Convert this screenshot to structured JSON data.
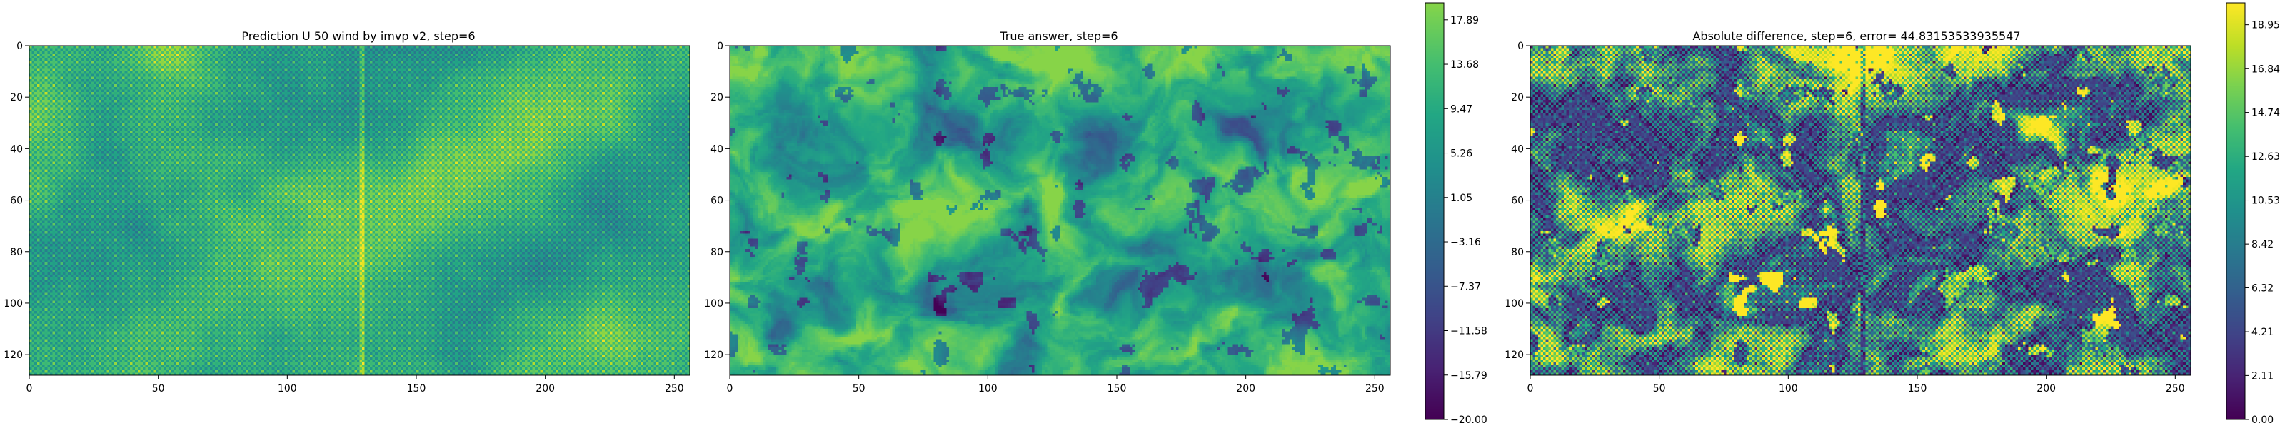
{
  "figure": {
    "background": "#ffffff"
  },
  "chart_data": [
    {
      "type": "heatmap",
      "title": "Prediction U 50 wind by imvp v2, step=6",
      "x_ticks": [
        0,
        50,
        100,
        150,
        200,
        250
      ],
      "y_ticks": [
        0,
        20,
        40,
        60,
        80,
        100,
        120
      ],
      "xlim": [
        0,
        256
      ],
      "ylim": [
        128,
        0
      ],
      "grid": false,
      "colormap": "viridis",
      "value_range": [
        -20.0,
        19.5
      ],
      "pattern": "checkerboard-noise"
    },
    {
      "type": "heatmap",
      "title": "True answer, step=6",
      "x_ticks": [
        0,
        50,
        100,
        150,
        200,
        250
      ],
      "y_ticks": [
        0,
        20,
        40,
        60,
        80,
        100,
        120
      ],
      "xlim": [
        0,
        256
      ],
      "ylim": [
        128,
        0
      ],
      "grid": false,
      "colormap": "viridis",
      "value_range": [
        -20.0,
        19.5
      ],
      "pattern": "zonal-swirls",
      "colorbar": {
        "ticks": [
          "17.89",
          "13.68",
          "9.47",
          "5.26",
          "1.05",
          "−3.16",
          "−7.37",
          "−11.58",
          "−15.79",
          "−20.00"
        ],
        "range": [
          -20.0,
          19.5
        ],
        "colormap": "viridis-truncated"
      }
    },
    {
      "type": "heatmap",
      "title": "Absolute difference, step=6, error= 44.83153533935547",
      "x_ticks": [
        0,
        50,
        100,
        150,
        200,
        250
      ],
      "y_ticks": [
        0,
        20,
        40,
        60,
        80,
        100,
        120
      ],
      "xlim": [
        0,
        256
      ],
      "ylim": [
        128,
        0
      ],
      "grid": false,
      "colormap": "viridis",
      "value_range": [
        0.0,
        20.0
      ],
      "pattern": "abs-diff",
      "colorbar": {
        "ticks": [
          "18.95",
          "16.84",
          "14.74",
          "12.63",
          "10.53",
          "8.42",
          "6.32",
          "4.21",
          "2.11",
          "0.00"
        ],
        "range": [
          0.0,
          20.0
        ],
        "colormap": "viridis"
      }
    }
  ]
}
